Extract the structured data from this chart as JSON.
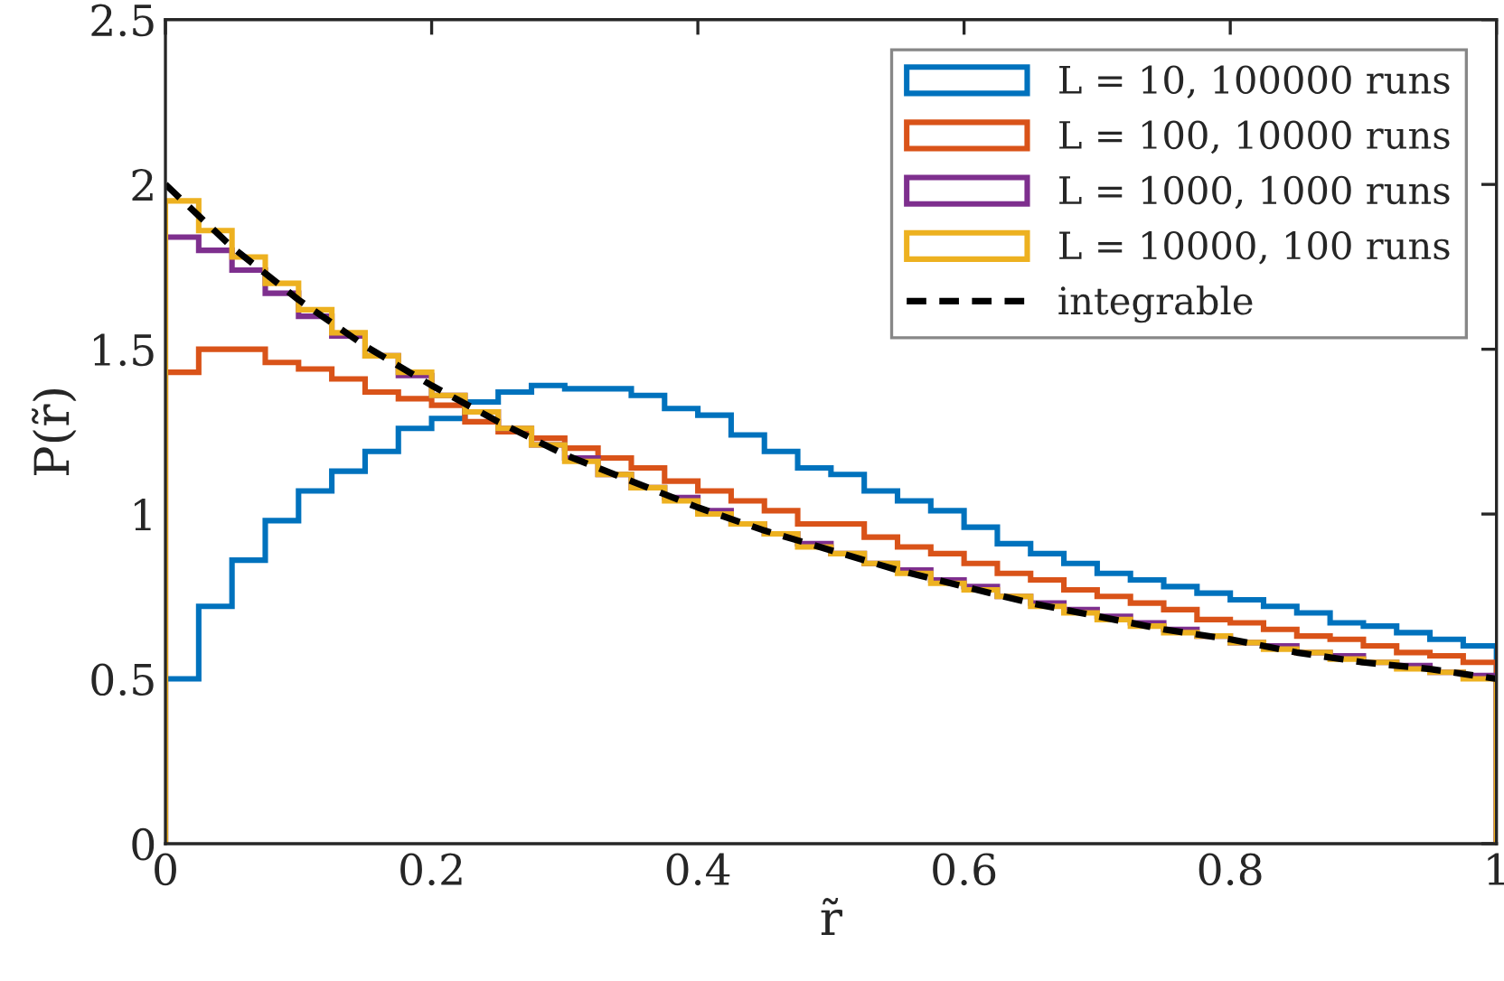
{
  "chart_data": {
    "type": "histogram",
    "xlabel": "r̃",
    "ylabel": "P(r̃)",
    "bins": [
      0,
      0.025,
      0.05,
      0.075,
      0.1,
      0.125,
      0.15,
      0.175,
      0.2,
      0.225,
      0.25,
      0.275,
      0.3,
      0.325,
      0.35,
      0.375,
      0.4,
      0.425,
      0.45,
      0.475,
      0.5,
      0.525,
      0.55,
      0.575,
      0.6,
      0.625,
      0.65,
      0.675,
      0.7,
      0.725,
      0.75,
      0.775,
      0.8,
      0.825,
      0.85,
      0.875,
      0.9,
      0.925,
      0.95,
      0.975,
      1
    ],
    "series": [
      {
        "name": "L = 10, 100000 runs",
        "color": "#0072bd",
        "values": [
          0.5,
          0.72,
          0.86,
          0.98,
          1.07,
          1.13,
          1.19,
          1.26,
          1.29,
          1.34,
          1.37,
          1.39,
          1.38,
          1.38,
          1.36,
          1.32,
          1.3,
          1.24,
          1.19,
          1.14,
          1.12,
          1.07,
          1.04,
          1.01,
          0.96,
          0.91,
          0.88,
          0.85,
          0.82,
          0.8,
          0.78,
          0.76,
          0.74,
          0.72,
          0.7,
          0.67,
          0.66,
          0.64,
          0.62,
          0.6
        ]
      },
      {
        "name": "L = 100, 10000 runs",
        "color": "#d95319",
        "values": [
          1.43,
          1.5,
          1.5,
          1.46,
          1.44,
          1.41,
          1.37,
          1.35,
          1.33,
          1.28,
          1.25,
          1.23,
          1.2,
          1.17,
          1.14,
          1.1,
          1.07,
          1.04,
          1.01,
          0.97,
          0.97,
          0.93,
          0.9,
          0.88,
          0.85,
          0.82,
          0.8,
          0.77,
          0.75,
          0.73,
          0.71,
          0.68,
          0.67,
          0.65,
          0.63,
          0.62,
          0.6,
          0.58,
          0.57,
          0.55
        ]
      },
      {
        "name": "L = 1000, 1000 runs",
        "color": "#7e2f8e",
        "values": [
          1.84,
          1.8,
          1.74,
          1.67,
          1.6,
          1.54,
          1.48,
          1.42,
          1.36,
          1.31,
          1.26,
          1.21,
          1.17,
          1.12,
          1.08,
          1.05,
          1.01,
          0.97,
          0.94,
          0.91,
          0.88,
          0.85,
          0.83,
          0.8,
          0.78,
          0.75,
          0.73,
          0.71,
          0.69,
          0.67,
          0.65,
          0.63,
          0.61,
          0.6,
          0.58,
          0.57,
          0.55,
          0.54,
          0.52,
          0.51
        ]
      },
      {
        "name": "L = 10000, 100 runs",
        "color": "#edb120",
        "values": [
          1.95,
          1.86,
          1.78,
          1.7,
          1.62,
          1.55,
          1.48,
          1.43,
          1.36,
          1.31,
          1.26,
          1.21,
          1.16,
          1.12,
          1.08,
          1.04,
          1.0,
          0.97,
          0.94,
          0.9,
          0.88,
          0.85,
          0.82,
          0.79,
          0.77,
          0.75,
          0.72,
          0.7,
          0.68,
          0.66,
          0.64,
          0.63,
          0.61,
          0.59,
          0.58,
          0.56,
          0.55,
          0.53,
          0.52,
          0.5
        ]
      },
      {
        "name": "integrable",
        "type": "line",
        "line_style": "dashed",
        "color": "#000000",
        "x": [
          0,
          0.05,
          0.1,
          0.15,
          0.2,
          0.25,
          0.3,
          0.35,
          0.4,
          0.45,
          0.5,
          0.55,
          0.6,
          0.65,
          0.7,
          0.75,
          0.8,
          0.85,
          0.9,
          0.95,
          1
        ],
        "values": [
          2.0,
          1.81,
          1.65,
          1.51,
          1.39,
          1.28,
          1.18,
          1.1,
          1.02,
          0.95,
          0.89,
          0.83,
          0.78,
          0.73,
          0.69,
          0.65,
          0.62,
          0.58,
          0.55,
          0.53,
          0.5
        ]
      }
    ],
    "xlim": [
      0,
      1
    ],
    "ylim": [
      0,
      2.5
    ],
    "xticks": [
      0,
      0.2,
      0.4,
      0.6,
      0.8,
      1
    ],
    "yticks": [
      0,
      0.5,
      1,
      1.5,
      2,
      2.5
    ],
    "legend": "top right"
  }
}
